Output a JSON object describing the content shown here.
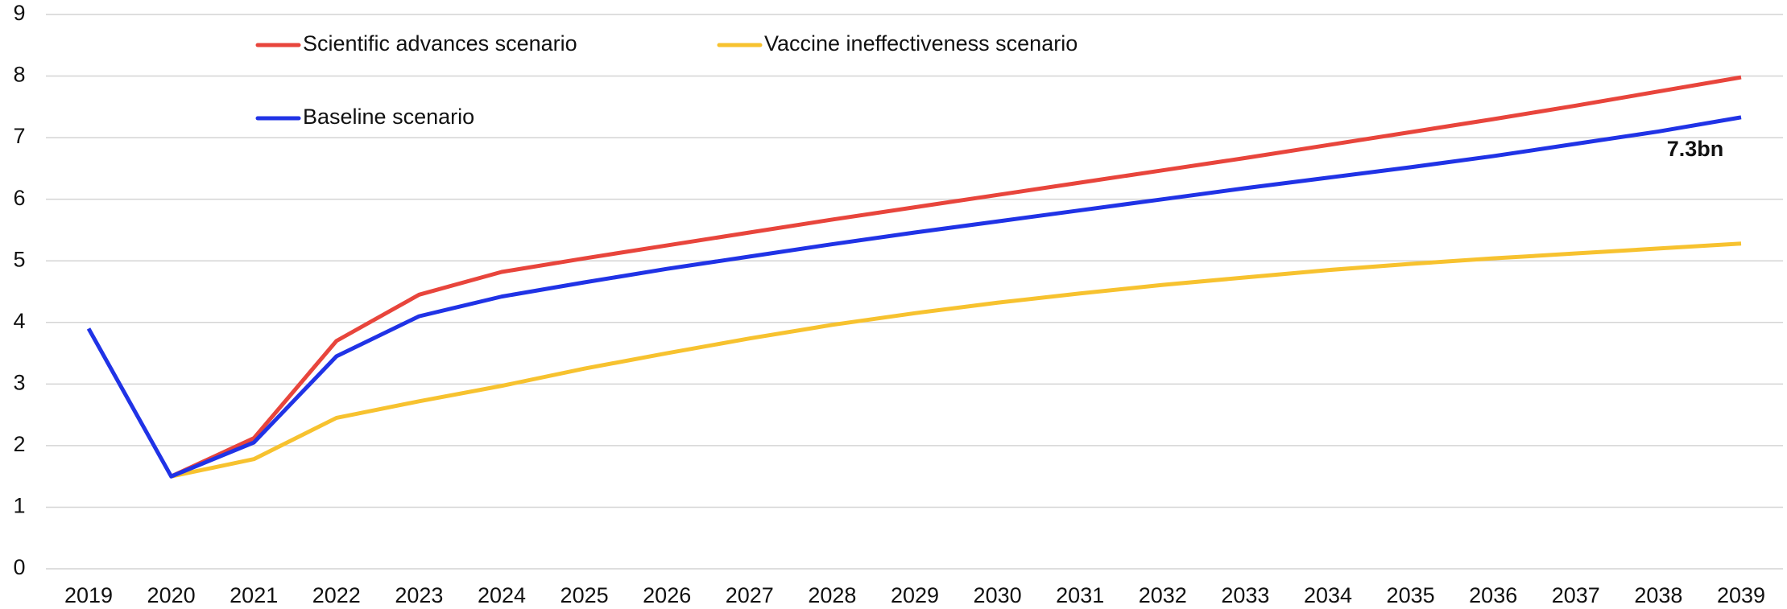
{
  "chart_data": {
    "type": "line",
    "categories": [
      "2019",
      "2020",
      "2021",
      "2022",
      "2023",
      "2024",
      "2025",
      "2026",
      "2027",
      "2028",
      "2029",
      "2030",
      "2031",
      "2032",
      "2033",
      "2034",
      "2035",
      "2036",
      "2037",
      "2038",
      "2039"
    ],
    "series": [
      {
        "name": "Scientific advances scenario",
        "color": "#e8453c",
        "values": [
          null,
          1.5,
          2.12,
          3.7,
          4.45,
          4.82,
          5.04,
          5.25,
          5.46,
          5.67,
          5.87,
          6.07,
          6.27,
          6.47,
          6.67,
          6.88,
          7.09,
          7.3,
          7.52,
          7.75,
          7.98
        ]
      },
      {
        "name": "Vaccine ineffectiveness scenario",
        "color": "#f7c22f",
        "values": [
          null,
          1.5,
          1.78,
          2.45,
          2.72,
          2.97,
          3.25,
          3.5,
          3.74,
          3.96,
          4.15,
          4.32,
          4.47,
          4.61,
          4.73,
          4.85,
          4.95,
          5.04,
          5.12,
          5.2,
          5.28
        ]
      },
      {
        "name": "Baseline scenario",
        "color": "#2033e6",
        "values": [
          3.9,
          1.5,
          2.05,
          3.45,
          4.1,
          4.42,
          4.65,
          4.87,
          5.07,
          5.27,
          5.46,
          5.64,
          5.82,
          6.0,
          6.18,
          6.35,
          6.52,
          6.7,
          6.9,
          7.1,
          7.33
        ]
      }
    ],
    "annotations": [
      {
        "text": "7.3bn"
      }
    ],
    "ylim": [
      0,
      9
    ],
    "yticks": [
      0,
      1,
      2,
      3,
      4,
      5,
      6,
      7,
      8,
      9
    ],
    "grid": true
  }
}
